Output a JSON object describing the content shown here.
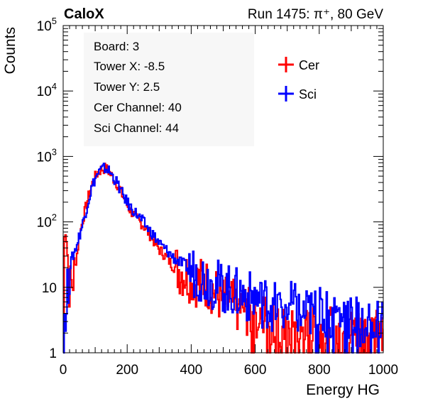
{
  "header": {
    "left_title": "CaloX",
    "right_title": "Run 1475:   π⁺, 80 GeV"
  },
  "info_box": {
    "lines": [
      "Board: 3",
      "Tower X: -8.5",
      "Tower Y: 2.5",
      "Cer Channel: 40",
      "Sci Channel: 44"
    ]
  },
  "chart_data": {
    "type": "line",
    "title": "",
    "xlabel": "Energy HG",
    "ylabel": "Counts",
    "xlim": [
      0,
      1000
    ],
    "ylim": [
      1,
      100000
    ],
    "yscale": "log",
    "x_ticks": [
      "0",
      "200",
      "400",
      "600",
      "800",
      "1000"
    ],
    "y_ticks": [
      {
        "base": "1",
        "exp": ""
      },
      {
        "base": "10",
        "exp": ""
      },
      {
        "base": "10",
        "exp": "2"
      },
      {
        "base": "10",
        "exp": "3"
      },
      {
        "base": "10",
        "exp": "4"
      },
      {
        "base": "10",
        "exp": "5"
      }
    ],
    "legend_position": "top-right",
    "grid": false,
    "series": [
      {
        "name": "Cer",
        "color": "#ff0000",
        "x": [
          0,
          5,
          10,
          20,
          30,
          40,
          50,
          60,
          70,
          80,
          90,
          100,
          110,
          120,
          130,
          140,
          150,
          160,
          170,
          180,
          190,
          200,
          210,
          220,
          230,
          240,
          250,
          260,
          270,
          280,
          290,
          300,
          310,
          320,
          330,
          340,
          350,
          360,
          380,
          400,
          420,
          440,
          460,
          480,
          500,
          520,
          540,
          560,
          580,
          600,
          620,
          640,
          660,
          680,
          700,
          720,
          740,
          760,
          780,
          800,
          820,
          840,
          860,
          880,
          900,
          920,
          940,
          960,
          980,
          1000
        ],
        "values": [
          1,
          90,
          60,
          10,
          12,
          25,
          55,
          100,
          160,
          250,
          370,
          480,
          580,
          640,
          660,
          620,
          520,
          440,
          370,
          290,
          230,
          180,
          150,
          130,
          110,
          100,
          90,
          75,
          65,
          55,
          45,
          38,
          34,
          30,
          26,
          22,
          20,
          19,
          16,
          14,
          12,
          12,
          10,
          8,
          6,
          6,
          5,
          5,
          4,
          4,
          4,
          3,
          3,
          2,
          2,
          2,
          2,
          2,
          2,
          2,
          2,
          2,
          2,
          2,
          2,
          2,
          2,
          2,
          2,
          2
        ]
      },
      {
        "name": "Sci",
        "color": "#0000ff",
        "x": [
          0,
          5,
          10,
          20,
          30,
          40,
          50,
          60,
          70,
          80,
          90,
          100,
          110,
          120,
          130,
          140,
          150,
          160,
          170,
          180,
          190,
          200,
          210,
          220,
          230,
          240,
          250,
          260,
          270,
          280,
          290,
          300,
          310,
          320,
          330,
          340,
          350,
          360,
          380,
          400,
          420,
          440,
          460,
          480,
          500,
          520,
          540,
          560,
          580,
          600,
          620,
          640,
          660,
          680,
          700,
          720,
          740,
          760,
          780,
          800,
          820,
          840,
          860,
          880,
          900,
          920,
          940,
          960,
          980,
          1000
        ],
        "values": [
          1,
          5,
          5,
          20,
          30,
          40,
          60,
          90,
          140,
          220,
          340,
          460,
          560,
          630,
          660,
          630,
          540,
          460,
          380,
          300,
          240,
          200,
          170,
          150,
          130,
          115,
          100,
          85,
          75,
          65,
          55,
          48,
          42,
          38,
          34,
          30,
          27,
          25,
          22,
          18,
          16,
          14,
          12,
          11,
          10,
          9,
          8,
          8,
          7,
          7,
          6,
          6,
          5,
          5,
          5,
          5,
          4,
          4,
          4,
          4,
          4,
          4,
          4,
          4,
          3,
          3,
          3,
          3,
          3,
          3
        ]
      }
    ]
  }
}
